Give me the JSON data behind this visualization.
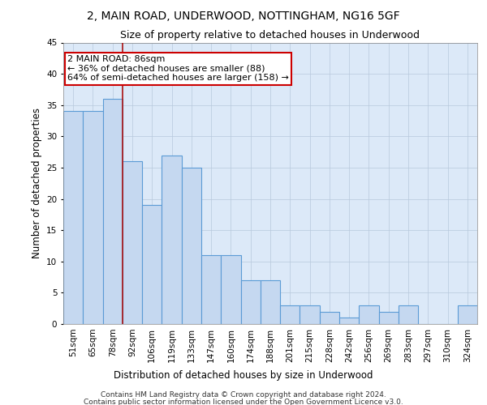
{
  "title": "2, MAIN ROAD, UNDERWOOD, NOTTINGHAM, NG16 5GF",
  "subtitle": "Size of property relative to detached houses in Underwood",
  "xlabel": "Distribution of detached houses by size in Underwood",
  "ylabel": "Number of detached properties",
  "categories": [
    "51sqm",
    "65sqm",
    "78sqm",
    "92sqm",
    "106sqm",
    "119sqm",
    "133sqm",
    "147sqm",
    "160sqm",
    "174sqm",
    "188sqm",
    "201sqm",
    "215sqm",
    "228sqm",
    "242sqm",
    "256sqm",
    "269sqm",
    "283sqm",
    "297sqm",
    "310sqm",
    "324sqm"
  ],
  "values": [
    34,
    34,
    36,
    26,
    19,
    27,
    25,
    11,
    11,
    7,
    7,
    3,
    3,
    2,
    1,
    3,
    2,
    3,
    0,
    0,
    3
  ],
  "bar_color": "#c5d8f0",
  "bar_edge_color": "#5b9bd5",
  "background_color": "#dce9f8",
  "vline_color": "#aa1111",
  "annotation_box_color": "#ffffff",
  "annotation_box_edge_color": "#cc0000",
  "ylim": [
    0,
    45
  ],
  "yticks": [
    0,
    5,
    10,
    15,
    20,
    25,
    30,
    35,
    40,
    45
  ],
  "footer_line1": "Contains HM Land Registry data © Crown copyright and database right 2024.",
  "footer_line2": "Contains public sector information licensed under the Open Government Licence v3.0.",
  "title_fontsize": 10,
  "subtitle_fontsize": 9,
  "axis_label_fontsize": 8.5,
  "tick_fontsize": 7.5,
  "annotation_fontsize": 8,
  "footer_fontsize": 6.5
}
